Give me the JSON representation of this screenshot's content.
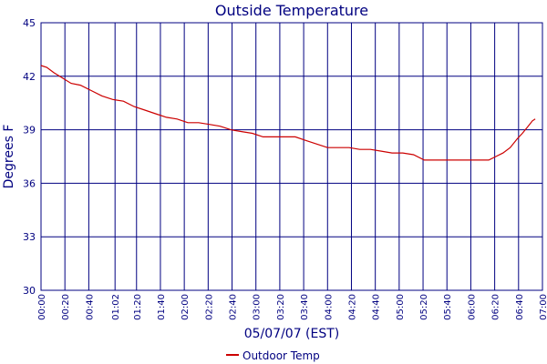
{
  "chart_data": {
    "type": "line",
    "title": "Outside Temperature",
    "xlabel": "05/07/07 (EST)",
    "ylabel": "Degrees F",
    "ylim": [
      30,
      45
    ],
    "yticks": [
      "30",
      "33",
      "36",
      "39",
      "42",
      "45"
    ],
    "xticks": [
      "00:00",
      "00:20",
      "00:40",
      "01:02",
      "01:20",
      "01:40",
      "02:00",
      "02:20",
      "02:40",
      "03:00",
      "03:20",
      "03:40",
      "04:00",
      "04:20",
      "04:40",
      "05:00",
      "05:20",
      "05:40",
      "06:00",
      "06:20",
      "06:40",
      "07:00"
    ],
    "grid": true,
    "legend": "bottom-center",
    "colors": {
      "frame": "#000080",
      "text": "#000080",
      "series": "#cc0000"
    },
    "series": [
      {
        "name": "Outdoor Temp",
        "x": [
          0,
          0.08,
          0.18,
          0.3,
          0.42,
          0.55,
          0.7,
          0.85,
          1,
          1.15,
          1.3,
          1.45,
          1.6,
          1.75,
          1.9,
          2.05,
          2.2,
          2.35,
          2.5,
          2.65,
          2.8,
          2.95,
          3.1,
          3.25,
          3.4,
          3.55,
          3.7,
          3.85,
          4,
          4.15,
          4.3,
          4.45,
          4.6,
          4.75,
          4.9,
          5.05,
          5.2,
          5.35,
          5.5,
          5.65,
          5.8,
          5.95,
          6.1,
          6.25,
          6.35,
          6.45,
          6.55,
          6.65,
          6.72,
          6.8,
          6.86,
          6.9
        ],
        "y": [
          42.6,
          42.5,
          42.2,
          41.9,
          41.6,
          41.5,
          41.2,
          40.9,
          40.7,
          40.6,
          40.3,
          40.1,
          39.9,
          39.7,
          39.6,
          39.4,
          39.4,
          39.3,
          39.2,
          39.0,
          38.9,
          38.8,
          38.6,
          38.6,
          38.6,
          38.6,
          38.4,
          38.2,
          38.0,
          38.0,
          38.0,
          37.9,
          37.9,
          37.8,
          37.7,
          37.7,
          37.6,
          37.3,
          37.3,
          37.3,
          37.3,
          37.3,
          37.3,
          37.3,
          37.5,
          37.7,
          38.0,
          38.5,
          38.8,
          39.2,
          39.5,
          39.6
        ]
      }
    ]
  }
}
